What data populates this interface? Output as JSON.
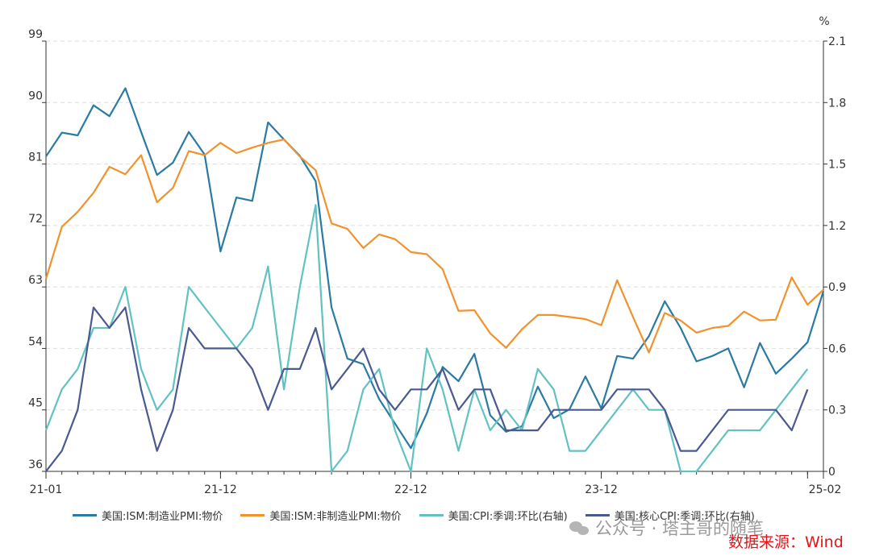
{
  "chart_data": {
    "type": "line",
    "x": [
      "21-01",
      "21-02",
      "21-03",
      "21-04",
      "21-05",
      "21-06",
      "21-07",
      "21-08",
      "21-09",
      "21-10",
      "21-11",
      "21-12",
      "22-01",
      "22-02",
      "22-03",
      "22-04",
      "22-05",
      "22-06",
      "22-07",
      "22-08",
      "22-09",
      "22-10",
      "22-11",
      "22-12",
      "23-01",
      "23-02",
      "23-03",
      "23-04",
      "23-05",
      "23-06",
      "23-07",
      "23-08",
      "23-09",
      "23-10",
      "23-11",
      "23-12",
      "24-01",
      "24-02",
      "24-03",
      "24-04",
      "24-05",
      "24-06",
      "24-07",
      "24-08",
      "24-09",
      "24-10",
      "24-11",
      "24-12",
      "25-01",
      "25-02"
    ],
    "xticks": [
      "21-01",
      "21-12",
      "22-12",
      "23-12",
      "25-02"
    ],
    "y_left": {
      "min": 36,
      "max": 99,
      "ticks": [
        36,
        45,
        54,
        63,
        72,
        81,
        90,
        99
      ]
    },
    "y_right": {
      "min": 0,
      "max": 2.1,
      "ticks": [
        "0",
        "0.3",
        "0.6",
        "0.9",
        "1.2",
        "1.5",
        "1.8",
        "2.1"
      ],
      "unit": "%"
    },
    "series": [
      {
        "name": "美国:ISM:制造业PMI:物价",
        "axis": "left",
        "color": "#2a7aa3",
        "values": [
          82.1,
          85.6,
          85.2,
          89.6,
          88.0,
          92.1,
          85.7,
          79.4,
          81.2,
          85.7,
          82.4,
          68.2,
          76.1,
          75.6,
          87.1,
          84.6,
          82.2,
          78.5,
          60.0,
          52.5,
          51.7,
          46.6,
          43.0,
          39.4,
          44.5,
          51.3,
          49.2,
          53.2,
          44.2,
          41.8,
          42.6,
          48.4,
          43.8,
          45.1,
          49.9,
          45.2,
          52.9,
          52.5,
          55.8,
          60.9,
          57.0,
          52.1,
          52.9,
          54.0,
          48.3,
          54.8,
          50.3,
          52.5,
          54.9,
          62.4
        ]
      },
      {
        "name": "美国:ISM:非制造业PMI:物价",
        "axis": "left",
        "color": "#f0922d",
        "values": [
          64.2,
          71.8,
          74.0,
          76.8,
          80.6,
          79.5,
          82.3,
          75.4,
          77.5,
          82.9,
          82.3,
          84.1,
          82.6,
          83.4,
          84.1,
          84.6,
          82.1,
          80.1,
          72.3,
          71.5,
          68.7,
          70.7,
          70.0,
          68.1,
          67.8,
          65.6,
          59.5,
          59.6,
          56.2,
          54.1,
          56.8,
          58.9,
          58.9,
          58.6,
          58.3,
          57.4,
          64.0,
          58.6,
          53.4,
          59.2,
          58.1,
          56.3,
          57.0,
          57.3,
          59.4,
          58.1,
          58.2,
          64.4,
          60.4,
          62.6
        ]
      },
      {
        "name": "美国:CPI:季调:环比(右轴)",
        "axis": "right",
        "color": "#62c2c2",
        "values": [
          0.2,
          0.4,
          0.5,
          0.7,
          0.7,
          0.9,
          0.5,
          0.3,
          0.4,
          0.9,
          0.8,
          0.7,
          0.6,
          0.7,
          1.0,
          0.4,
          0.9,
          1.3,
          0.0,
          0.1,
          0.4,
          0.5,
          0.2,
          0.0,
          0.6,
          0.4,
          0.1,
          0.4,
          0.2,
          0.3,
          0.2,
          0.5,
          0.4,
          0.1,
          0.1,
          0.2,
          0.3,
          0.4,
          0.3,
          0.3,
          0.0,
          0.0,
          0.1,
          0.2,
          0.2,
          0.2,
          0.3,
          0.4,
          0.5,
          null
        ]
      },
      {
        "name": "美国:核心CPI:季调:环比(右轴)",
        "axis": "right",
        "color": "#4a5990",
        "values": [
          0.0,
          0.1,
          0.3,
          0.8,
          0.7,
          0.8,
          0.4,
          0.1,
          0.3,
          0.7,
          0.6,
          0.6,
          0.6,
          0.5,
          0.3,
          0.5,
          0.5,
          0.7,
          0.4,
          0.5,
          0.6,
          0.4,
          0.3,
          0.4,
          0.4,
          0.5,
          0.3,
          0.4,
          0.4,
          0.2,
          0.2,
          0.2,
          0.3,
          0.3,
          0.3,
          0.3,
          0.4,
          0.4,
          0.4,
          0.3,
          0.1,
          0.1,
          0.2,
          0.3,
          0.3,
          0.3,
          0.3,
          0.2,
          0.4,
          null
        ]
      }
    ]
  },
  "axis": {
    "right_unit": "%"
  },
  "watermark": {
    "text": "公众号 · 塔主哥的随笔"
  },
  "source": {
    "text": "数据来源：Wind"
  }
}
